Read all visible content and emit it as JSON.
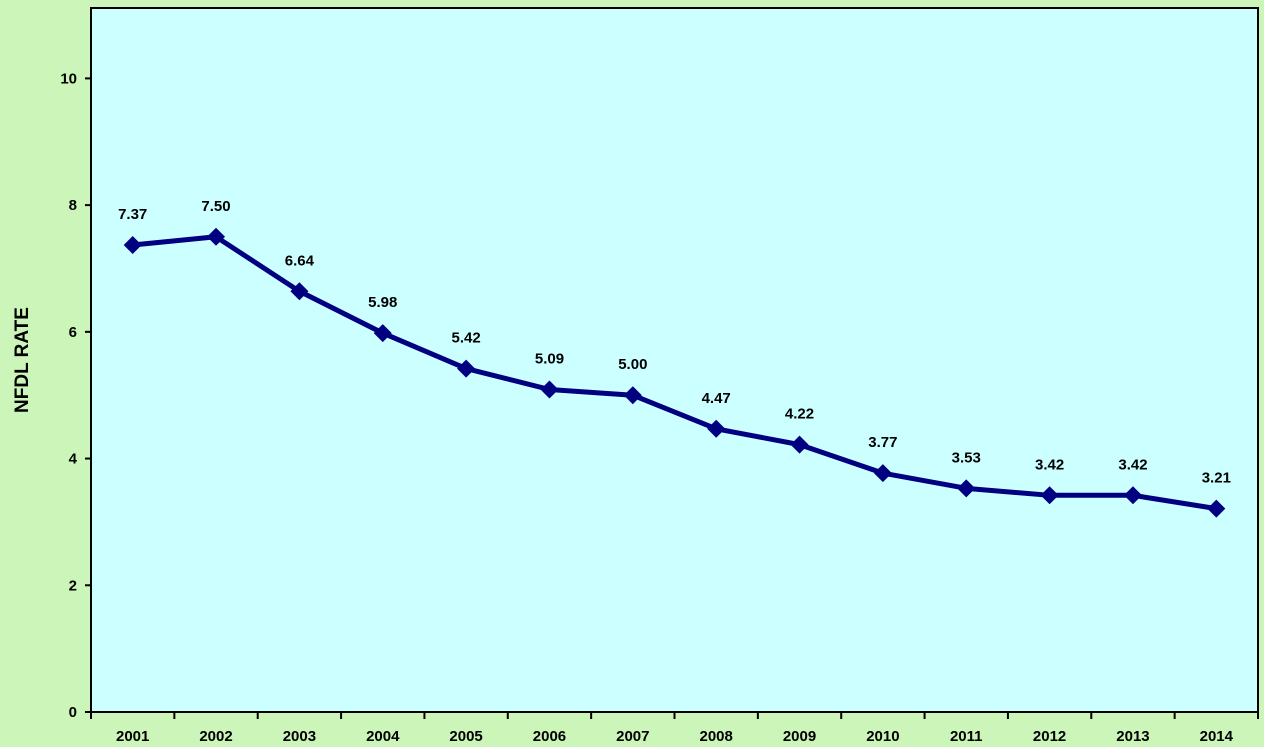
{
  "chart_data": {
    "type": "line",
    "title": "",
    "xlabel": "",
    "ylabel": "NFDL RATE",
    "ylim": [
      0,
      10
    ],
    "yticks": [
      0,
      2,
      4,
      6,
      8,
      10
    ],
    "grid": false,
    "categories": [
      "2001",
      "2002",
      "2003",
      "2004",
      "2005",
      "2006",
      "2007",
      "2008",
      "2009",
      "2010",
      "2011",
      "2012",
      "2013",
      "2014"
    ],
    "series": [
      {
        "values": [
          7.37,
          7.5,
          6.64,
          5.98,
          5.42,
          5.09,
          5.0,
          4.47,
          4.22,
          3.77,
          3.53,
          3.42,
          3.42,
          3.21
        ],
        "labels": [
          "7.37",
          "7.50",
          "6.64",
          "5.98",
          "5.42",
          "5.09",
          "5.00",
          "4.47",
          "4.22",
          "3.77",
          "3.53",
          "3.42",
          "3.42",
          "3.21"
        ],
        "color": "#000080"
      }
    ],
    "colors": {
      "page_background": "#ccf5b9",
      "plot_background": "#ccffff",
      "axis": "#000000"
    }
  }
}
